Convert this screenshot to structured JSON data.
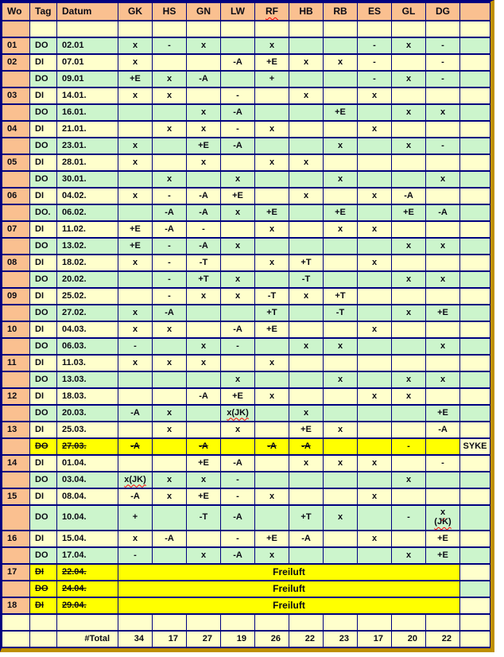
{
  "colors": {
    "header_bg": "#FAC090",
    "week_column_bg": "#FAC090",
    "tuesday_row_bg": "#FFFFCC",
    "thursday_row_bg": "#CCF5CC",
    "cancelled_row_bg": "#FFFF00",
    "grid_line": "#000080",
    "outer_frame": "#BF9000",
    "text": "#0A0A14",
    "spellcheck_underline": "#FF0000"
  },
  "table": {
    "columns": [
      "Wo",
      "Tag",
      "Datum",
      "GK",
      "HS",
      "GN",
      "LW",
      "RF",
      "HB",
      "RB",
      "ES",
      "GL",
      "DG",
      ""
    ],
    "spellchecked_headers": [
      "RF"
    ],
    "freiluft_label": "Freiluft",
    "syke_label": "SYKE",
    "total_row": {
      "label": "#Total",
      "values": [
        "34",
        "17",
        "27",
        "19",
        "26",
        "22",
        "23",
        "17",
        "20",
        "22"
      ]
    },
    "rows": [
      {
        "type": "spacer_top"
      },
      {
        "type": "do",
        "wo": "01",
        "tag": "DO",
        "datum": "02.01",
        "cells": [
          "x",
          "-",
          "x",
          "",
          "x",
          "",
          "",
          "-",
          "x",
          "-"
        ]
      },
      {
        "type": "di",
        "wo": "02",
        "tag": "DI",
        "datum": "07.01",
        "cells": [
          "x",
          "",
          "",
          "-A",
          "+E",
          "x",
          "x",
          "-",
          "",
          "-"
        ]
      },
      {
        "type": "do",
        "wo": "",
        "tag": "DO",
        "datum": "09.01",
        "cells": [
          "+E",
          "x",
          "-A",
          "",
          "+",
          "",
          "",
          "-",
          "x",
          "-"
        ]
      },
      {
        "type": "di",
        "wo": "03",
        "tag": "DI",
        "datum": "14.01.",
        "cells": [
          "x",
          "x",
          "",
          "-",
          "",
          "x",
          "",
          "x",
          "",
          ""
        ]
      },
      {
        "type": "do",
        "wo": "",
        "tag": "DO",
        "datum": "16.01.",
        "cells": [
          "",
          "",
          "x",
          "-A",
          "",
          "",
          "+E",
          "",
          "x",
          "x"
        ]
      },
      {
        "type": "di",
        "wo": "04",
        "tag": "DI",
        "datum": "21.01.",
        "cells": [
          "",
          "x",
          "x",
          "-",
          "x",
          "",
          "",
          "x",
          "",
          ""
        ]
      },
      {
        "type": "do",
        "wo": "",
        "tag": "DO",
        "datum": "23.01.",
        "cells": [
          "x",
          "",
          "+E",
          "-A",
          "",
          "",
          "x",
          "",
          "x",
          "-"
        ]
      },
      {
        "type": "di",
        "wo": "05",
        "tag": "DI",
        "datum": "28.01.",
        "cells": [
          "x",
          "",
          "x",
          "",
          "x",
          "x",
          "",
          "",
          "",
          ""
        ]
      },
      {
        "type": "do",
        "wo": "",
        "tag": "DO",
        "datum": "30.01.",
        "cells": [
          "",
          "x",
          "",
          "x",
          "",
          "",
          "x",
          "",
          "",
          "x"
        ]
      },
      {
        "type": "di",
        "wo": "06",
        "tag": "DI",
        "datum": "04.02.",
        "cells": [
          "x",
          "-",
          "-A",
          "+E",
          "",
          "x",
          "",
          "x",
          "-A",
          ""
        ]
      },
      {
        "type": "do",
        "wo": "",
        "tag": "DO.",
        "datum": "06.02.",
        "cells": [
          "",
          "-A",
          "-A",
          "x",
          "+E",
          "",
          "+E",
          "",
          "+E",
          "-A"
        ]
      },
      {
        "type": "di",
        "wo": "07",
        "tag": "DI",
        "datum": "11.02.",
        "cells": [
          "+E",
          "-A",
          "-",
          "",
          "x",
          "",
          "x",
          "x",
          "",
          ""
        ]
      },
      {
        "type": "do",
        "wo": "",
        "tag": "DO",
        "datum": "13.02.",
        "cells": [
          "+E",
          "-",
          "-A",
          "x",
          "",
          "",
          "",
          "",
          "x",
          "x"
        ]
      },
      {
        "type": "di",
        "wo": "08",
        "tag": "DI",
        "datum": "18.02.",
        "cells": [
          "x",
          "-",
          "-T",
          "",
          "x",
          "+T",
          "",
          "x",
          "",
          ""
        ]
      },
      {
        "type": "do",
        "wo": "",
        "tag": "DO",
        "datum": "20.02.",
        "cells": [
          "",
          "-",
          "+T",
          "x",
          "",
          "-T",
          "",
          "",
          "x",
          "x"
        ]
      },
      {
        "type": "di",
        "wo": "09",
        "tag": "DI",
        "datum": "25.02.",
        "cells": [
          "",
          "-",
          "x",
          "x",
          "-T",
          "x",
          "+T",
          "",
          "",
          ""
        ]
      },
      {
        "type": "do",
        "wo": "",
        "tag": "DO",
        "datum": "27.02.",
        "cells": [
          "x",
          "-A",
          "",
          "",
          "+T",
          "",
          "-T",
          "",
          "x",
          "+E"
        ]
      },
      {
        "type": "di",
        "wo": "10",
        "tag": "DI",
        "datum": "04.03.",
        "cells": [
          "x",
          "x",
          "",
          "-A",
          "+E",
          "",
          "",
          "x",
          "",
          ""
        ]
      },
      {
        "type": "do",
        "wo": "",
        "tag": "DO",
        "datum": "06.03.",
        "cells": [
          "-",
          "",
          "x",
          "-",
          "",
          "x",
          "x",
          "",
          "",
          "x"
        ]
      },
      {
        "type": "di",
        "wo": "11",
        "tag": "DI",
        "datum": "11.03.",
        "cells": [
          "x",
          "x",
          "x",
          "",
          "x",
          "",
          "",
          "",
          "",
          ""
        ]
      },
      {
        "type": "do",
        "wo": "",
        "tag": "DO",
        "datum": "13.03.",
        "cells": [
          "",
          "",
          "",
          "x",
          "",
          "",
          "x",
          "",
          "x",
          "x"
        ]
      },
      {
        "type": "di",
        "wo": "12",
        "tag": "DI",
        "datum": "18.03.",
        "cells": [
          "",
          "",
          "-A",
          "+E",
          "x",
          "",
          "",
          "x",
          "x",
          ""
        ]
      },
      {
        "type": "do",
        "wo": "",
        "tag": "DO",
        "datum": "20.03.",
        "cells": [
          "-A",
          "x",
          "",
          "x(JK)",
          "",
          "x",
          "",
          "",
          "",
          "+E"
        ],
        "spell": [
          3
        ]
      },
      {
        "type": "di",
        "wo": "13",
        "tag": "DI",
        "datum": "25.03.",
        "cells": [
          "",
          "x",
          "",
          "x",
          "",
          "+E",
          "x",
          "",
          "",
          "-A"
        ]
      },
      {
        "type": "syke",
        "wo": "",
        "tag": "DO",
        "datum": "27.03.",
        "cells": [
          "-A",
          "",
          "-A",
          "",
          "-A",
          "-A",
          "",
          "",
          "-",
          ""
        ],
        "struck": [
          0,
          2,
          4,
          5
        ],
        "last": "SYKE"
      },
      {
        "type": "di",
        "wo": "14",
        "tag": "DI",
        "datum": "01.04.",
        "cells": [
          "",
          "",
          "+E",
          "-A",
          "",
          "x",
          "x",
          "x",
          "",
          "-"
        ]
      },
      {
        "type": "do",
        "wo": "",
        "tag": "DO",
        "datum": "03.04.",
        "cells": [
          "x(JK)",
          "x",
          "x",
          "-",
          "",
          "",
          "",
          "",
          "x",
          ""
        ],
        "spell": [
          0
        ]
      },
      {
        "type": "di",
        "wo": "15",
        "tag": "DI",
        "datum": "08.04.",
        "cells": [
          "-A",
          "x",
          "+E",
          "-",
          "x",
          "",
          "",
          "x",
          "",
          ""
        ]
      },
      {
        "type": "do",
        "wo": "",
        "tag": "DO",
        "datum": "10.04.",
        "tall": true,
        "cells": [
          "+",
          "",
          "-T",
          "-A",
          "",
          "+T",
          "x",
          "",
          "-",
          "x\n(JK)"
        ],
        "spell": [
          9
        ]
      },
      {
        "type": "di",
        "wo": "16",
        "tag": "DI",
        "datum": "15.04.",
        "cells": [
          "x",
          "-A",
          "",
          "-",
          "+E",
          "-A",
          "",
          "x",
          "",
          "+E"
        ]
      },
      {
        "type": "do",
        "wo": "",
        "tag": "DO",
        "datum": "17.04.",
        "cells": [
          "-",
          "",
          "x",
          "-A",
          "x",
          "",
          "",
          "",
          "x",
          "+E"
        ]
      },
      {
        "type": "freiluft",
        "base": "di",
        "wo": "17",
        "tag": "DI",
        "datum": "22.04."
      },
      {
        "type": "freiluft",
        "base": "do",
        "wo": "",
        "tag": "DO",
        "datum": "24.04."
      },
      {
        "type": "freiluft",
        "base": "di",
        "wo": "18",
        "tag": "DI",
        "datum": "29.04."
      },
      {
        "type": "spacer_bottom"
      },
      {
        "type": "total"
      }
    ]
  }
}
